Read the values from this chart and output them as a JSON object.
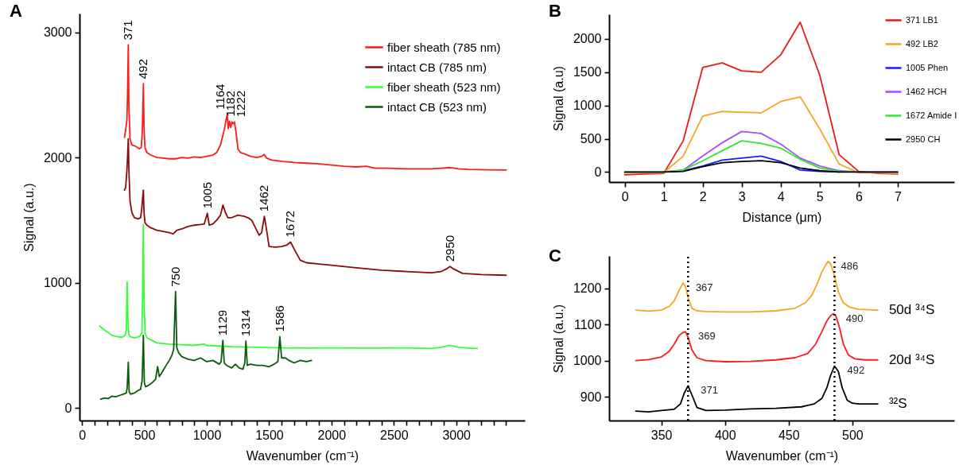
{
  "chart_data": [
    {
      "type": "line",
      "title": "A",
      "xlabel": "Wavenumber (cm⁻¹)",
      "ylabel": "Signal (a.u.)",
      "xlim": [
        -20,
        3550
      ],
      "ylim": [
        -100,
        3150
      ],
      "xticks": [
        0,
        {
          "value": 100,
          "label": null
        },
        {
          "value": 200,
          "label": null
        },
        {
          "value": 300,
          "label": null
        },
        {
          "value": 400,
          "label": null
        },
        500,
        {
          "value": 600,
          "label": null
        },
        {
          "value": 700,
          "label": null
        },
        {
          "value": 800,
          "label": null
        },
        {
          "value": 900,
          "label": null
        },
        1000,
        {
          "value": 1100,
          "label": null
        },
        {
          "value": 1200,
          "label": null
        },
        {
          "value": 1300,
          "label": null
        },
        {
          "value": 1400,
          "label": null
        },
        1500,
        {
          "value": 1600,
          "label": null
        },
        {
          "value": 1700,
          "label": null
        },
        {
          "value": 1800,
          "label": null
        },
        {
          "value": 1900,
          "label": null
        },
        2000,
        {
          "value": 2100,
          "label": null
        },
        {
          "value": 2200,
          "label": null
        },
        {
          "value": 2300,
          "label": null
        },
        {
          "value": 2400,
          "label": null
        },
        2500,
        {
          "value": 2600,
          "label": null
        },
        {
          "value": 2700,
          "label": null
        },
        {
          "value": 2800,
          "label": null
        },
        {
          "value": 2900,
          "label": null
        },
        3000,
        {
          "value": 3100,
          "label": null
        },
        {
          "value": 3200,
          "label": null
        },
        {
          "value": 3300,
          "label": null
        },
        {
          "value": 3400,
          "label": null
        }
      ],
      "yticks": [
        0,
        1000,
        2000,
        3000
      ],
      "legend": "top right",
      "series": [
        {
          "name": "fiber sheath (785 nm)",
          "color": "#ff1a1a",
          "x": [
            340,
            350,
            360,
            365,
            371,
            376,
            385,
            400,
            430,
            460,
            475,
            483,
            488,
            492,
            497,
            505,
            520,
            550,
            600,
            650,
            700,
            750,
            800,
            850,
            900,
            950,
            1000,
            1050,
            1080,
            1110,
            1140,
            1155,
            1164,
            1172,
            1182,
            1192,
            1202,
            1212,
            1222,
            1235,
            1250,
            1270,
            1300,
            1350,
            1400,
            1440,
            1460,
            1480,
            1520,
            1600,
            1700,
            1800,
            1900,
            2000,
            2100,
            2200,
            2280,
            2350,
            2450,
            2600,
            2800,
            2880,
            2950,
            3020,
            3100,
            3250,
            3400
          ],
          "values": [
            2160,
            2220,
            2300,
            2500,
            2900,
            2400,
            2150,
            2100,
            2090,
            2070,
            2080,
            2200,
            2400,
            2590,
            2250,
            2080,
            2040,
            2020,
            2000,
            1995,
            1990,
            1990,
            2000,
            1995,
            2005,
            2000,
            2010,
            2020,
            2040,
            2100,
            2220,
            2300,
            2345,
            2230,
            2290,
            2240,
            2285,
            2270,
            2285,
            2200,
            2070,
            2040,
            2030,
            2010,
            2000,
            2010,
            2025,
            1995,
            1980,
            1970,
            1960,
            1955,
            1950,
            1940,
            1930,
            1925,
            1930,
            1915,
            1915,
            1910,
            1910,
            1915,
            1920,
            1910,
            1905,
            1902,
            1900
          ]
        },
        {
          "name": "intact CB (785 nm)",
          "color": "#8b0a0a",
          "x": [
            340,
            350,
            360,
            365,
            371,
            376,
            385,
            400,
            420,
            450,
            470,
            480,
            486,
            492,
            497,
            505,
            520,
            550,
            600,
            650,
            700,
            730,
            760,
            800,
            850,
            900,
            950,
            980,
            1005,
            1020,
            1050,
            1080,
            1110,
            1130,
            1150,
            1170,
            1200,
            1250,
            1300,
            1330,
            1360,
            1390,
            1420,
            1440,
            1462,
            1480,
            1500,
            1550,
            1600,
            1640,
            1672,
            1700,
            1750,
            1800,
            1900,
            2000,
            2200,
            2400,
            2600,
            2800,
            2880,
            2920,
            2950,
            2980,
            3050,
            3200,
            3400
          ],
          "values": [
            1740,
            1760,
            1900,
            2000,
            2150,
            1900,
            1650,
            1560,
            1520,
            1510,
            1520,
            1600,
            1680,
            1740,
            1560,
            1480,
            1460,
            1440,
            1420,
            1410,
            1400,
            1390,
            1420,
            1430,
            1450,
            1460,
            1465,
            1470,
            1555,
            1460,
            1470,
            1500,
            1540,
            1620,
            1560,
            1520,
            1520,
            1540,
            1530,
            1520,
            1500,
            1440,
            1380,
            1400,
            1530,
            1420,
            1290,
            1285,
            1290,
            1300,
            1325,
            1270,
            1180,
            1160,
            1150,
            1140,
            1120,
            1100,
            1090,
            1080,
            1090,
            1110,
            1130,
            1110,
            1075,
            1065,
            1060
          ]
        },
        {
          "name": "fiber sheath (523 nm)",
          "color": "#33ff33",
          "x": [
            140,
            170,
            200,
            240,
            280,
            320,
            345,
            355,
            362,
            368,
            375,
            385,
            420,
            460,
            480,
            486,
            492,
            497,
            505,
            520,
            560,
            600,
            700,
            800,
            900,
            980,
            1000,
            1100,
            1200,
            1400,
            1600,
            1800,
            2000,
            2200,
            2400,
            2600,
            2800,
            2880,
            2950,
            3020,
            3100,
            3170
          ],
          "values": [
            655,
            630,
            610,
            580,
            570,
            565,
            580,
            620,
            1005,
            700,
            590,
            570,
            560,
            570,
            600,
            900,
            1465,
            900,
            600,
            560,
            540,
            520,
            510,
            505,
            500,
            510,
            500,
            495,
            490,
            485,
            480,
            478,
            480,
            478,
            478,
            480,
            475,
            485,
            500,
            485,
            478,
            475
          ]
        },
        {
          "name": "intact CB (523 nm)",
          "color": "#0a5c0a",
          "x": [
            150,
            180,
            210,
            240,
            270,
            300,
            330,
            355,
            362,
            371,
            378,
            390,
            420,
            450,
            470,
            482,
            492,
            500,
            510,
            530,
            560,
            590,
            606,
            620,
            650,
            680,
            700,
            720,
            735,
            750,
            760,
            775,
            800,
            850,
            900,
            950,
            1000,
            1050,
            1100,
            1115,
            1129,
            1140,
            1160,
            1200,
            1230,
            1260,
            1290,
            1305,
            1314,
            1325,
            1350,
            1400,
            1450,
            1500,
            1540,
            1570,
            1586,
            1600,
            1630,
            1660,
            1700,
            1750,
            1800,
            1840
          ],
          "values": [
            70,
            80,
            75,
            95,
            90,
            100,
            110,
            120,
            160,
            365,
            130,
            110,
            120,
            140,
            150,
            220,
            580,
            200,
            170,
            180,
            200,
            230,
            330,
            250,
            300,
            350,
            380,
            420,
            470,
            930,
            480,
            440,
            410,
            390,
            380,
            400,
            370,
            380,
            350,
            370,
            540,
            360,
            340,
            320,
            350,
            320,
            310,
            360,
            535,
            340,
            350,
            340,
            340,
            330,
            350,
            370,
            570,
            400,
            400,
            380,
            360,
            380,
            370,
            380
          ]
        }
      ],
      "annotations": [
        {
          "text": "371",
          "x": 371,
          "y": 2900
        },
        {
          "text": "492",
          "x": 492,
          "y": 2590
        },
        {
          "text": "1164",
          "x": 1164,
          "y": 2345
        },
        {
          "text": "1182",
          "x": 1182,
          "y": 2290
        },
        {
          "text": "1222",
          "x": 1222,
          "y": 2285
        },
        {
          "text": "1005",
          "x": 1005,
          "y": 1555
        },
        {
          "text": "1462",
          "x": 1462,
          "y": 1530
        },
        {
          "text": "1672",
          "x": 1672,
          "y": 1325
        },
        {
          "text": "2950",
          "x": 2950,
          "y": 1130
        },
        {
          "text": "750",
          "x": 750,
          "y": 930
        },
        {
          "text": "1129",
          "x": 1129,
          "y": 540
        },
        {
          "text": "1314",
          "x": 1314,
          "y": 535
        },
        {
          "text": "1586",
          "x": 1586,
          "y": 570
        }
      ]
    },
    {
      "type": "line",
      "title": "B",
      "xlabel": "Distance (μm)",
      "ylabel": "Signal (a.u)",
      "xlim": [
        -0.4,
        8.45
      ],
      "ylim": [
        -150,
        2370
      ],
      "xticks": [
        0,
        1,
        2,
        3,
        4,
        5,
        6,
        7
      ],
      "yticks": [
        0,
        500,
        1000,
        1500,
        2000
      ],
      "legend": "top right",
      "x": [
        0,
        0.5,
        1,
        1.5,
        2,
        2.5,
        3,
        3.5,
        4,
        4.5,
        5,
        5.5,
        6,
        6.5,
        7
      ],
      "series": [
        {
          "name": "371 LB1",
          "color": "#e8191c",
          "values": [
            -40,
            -30,
            -20,
            470,
            1570,
            1640,
            1520,
            1500,
            1760,
            2250,
            1460,
            260,
            10,
            -20,
            -30
          ]
        },
        {
          "name": "492 LB2",
          "color": "#f5a623",
          "values": [
            -10,
            -10,
            -10,
            240,
            840,
            910,
            900,
            890,
            1060,
            1130,
            650,
            120,
            -10,
            -10,
            -20
          ]
        },
        {
          "name": "1005 Phen",
          "color": "#1a1aff",
          "values": [
            null,
            null,
            0,
            20,
            90,
            180,
            210,
            240,
            160,
            30,
            10,
            0,
            null,
            null,
            null
          ]
        },
        {
          "name": "1462 HCH",
          "color": "#a64dff",
          "values": [
            null,
            null,
            0,
            30,
            240,
            440,
            610,
            580,
            420,
            210,
            90,
            20,
            0,
            0,
            0
          ]
        },
        {
          "name": "1672 Amide I",
          "color": "#33e633",
          "values": [
            0,
            0,
            0,
            30,
            170,
            320,
            470,
            430,
            360,
            190,
            60,
            10,
            0,
            null,
            null
          ]
        },
        {
          "name": "2950 CH",
          "color": "#000000",
          "values": [
            0,
            0,
            0,
            10,
            80,
            140,
            160,
            170,
            140,
            60,
            20,
            0,
            0,
            0,
            0
          ]
        }
      ]
    },
    {
      "type": "line",
      "title": "C",
      "xlabel": "Wavenumber (cm⁻¹)",
      "ylabel": "Signal (a.u.)",
      "xlim": [
        309,
        580
      ],
      "ylim": [
        834,
        1290
      ],
      "xticks": [
        350,
        400,
        450,
        500
      ],
      "yticks": [
        900,
        1000,
        1100,
        1200
      ],
      "legend": false,
      "series": [
        {
          "name": "50d ³⁴S",
          "color": "#f5a623",
          "x": [
            330,
            340,
            350,
            356,
            360,
            364,
            367,
            369,
            371,
            374,
            378,
            385,
            400,
            420,
            440,
            455,
            463,
            468,
            472,
            476,
            479,
            481,
            483,
            486,
            489,
            493,
            498,
            505,
            520
          ],
          "values": [
            1140,
            1137,
            1140,
            1150,
            1165,
            1195,
            1215,
            1205,
            1175,
            1145,
            1138,
            1136,
            1135,
            1135,
            1138,
            1145,
            1160,
            1180,
            1210,
            1245,
            1265,
            1275,
            1268,
            1235,
            1190,
            1160,
            1148,
            1142,
            1140
          ]
        },
        {
          "name": "20d ³⁴S",
          "color": "#ff1a1a",
          "x": [
            330,
            340,
            350,
            356,
            360,
            364,
            367,
            369,
            371,
            374,
            378,
            385,
            400,
            420,
            440,
            455,
            465,
            471,
            476,
            480,
            483,
            485,
            487,
            490,
            493,
            497,
            502,
            510,
            520
          ],
          "values": [
            1000,
            1003,
            1010,
            1025,
            1045,
            1070,
            1078,
            1080,
            1065,
            1030,
            1008,
            1000,
            997,
            998,
            1002,
            1008,
            1020,
            1045,
            1080,
            1110,
            1125,
            1130,
            1125,
            1090,
            1045,
            1015,
            1005,
            1002,
            1002
          ]
        },
        {
          "name": "³²S",
          "color": "#000000",
          "x": [
            330,
            340,
            350,
            360,
            365,
            368,
            371,
            374,
            378,
            385,
            400,
            420,
            440,
            460,
            470,
            476,
            480,
            483,
            486,
            489,
            492,
            496,
            500,
            505,
            520
          ],
          "values": [
            860,
            858,
            862,
            865,
            880,
            910,
            930,
            905,
            870,
            862,
            863,
            866,
            868,
            872,
            880,
            895,
            925,
            960,
            985,
            970,
            925,
            890,
            882,
            880,
            880
          ]
        }
      ],
      "ref_lines": [
        {
          "axis": "x",
          "value": 371,
          "color": "#000000",
          "line_style": "dotted"
        },
        {
          "axis": "x",
          "value": 486,
          "color": "#000000",
          "line_style": "dotted"
        }
      ],
      "annotations": [
        {
          "text": "367",
          "x": 367,
          "y": 1215
        },
        {
          "text": "486",
          "x": 481,
          "y": 1275
        },
        {
          "text": "369",
          "x": 369,
          "y": 1080
        },
        {
          "text": "490",
          "x": 485,
          "y": 1130
        },
        {
          "text": "371",
          "x": 371,
          "y": 930
        },
        {
          "text": "492",
          "x": 486,
          "y": 985
        }
      ]
    }
  ]
}
